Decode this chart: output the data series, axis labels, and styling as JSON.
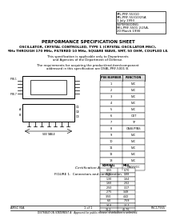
{
  "bg_color": "#ffffff",
  "title_main": "PERFORMANCE SPECIFICATION SHEET",
  "title_sub1": "OSCILLATOR, CRYSTAL CONTROLLED, TYPE 1 (CRYSTAL OSCILLATOR MSC),",
  "title_sub2": "25 MHz THROUGH 170 MHz, FILTERED 10 MHz, SQUARE WAVE, SMT, 50 OHM, COUPLED LEADS",
  "desc1": "This specification is applicable only to Departments",
  "desc2": "and Agencies of the Department of Defense.",
  "desc3": "The requirements for acquiring the product/end-item/component",
  "desc4": "addressed in this specification are DSBL-PRF-5001 B.",
  "top_box_lines": [
    "MIL-PRF-55310",
    "MIL-PRF-55310/25A",
    "1 July 1993",
    "SUPERSEDING",
    "MIL-PRF-5501 2/25A-",
    "20 March 1990"
  ],
  "pin_table_header": [
    "PIN NUMBER",
    "FUNCTION"
  ],
  "pin_table_rows": [
    [
      "1",
      "N/C"
    ],
    [
      "2",
      "N/C"
    ],
    [
      "3",
      "N/C"
    ],
    [
      "4",
      "N/C"
    ],
    [
      "5",
      "N/C"
    ],
    [
      "6",
      "OUT"
    ],
    [
      "7",
      "TP"
    ],
    [
      "8",
      "CASE/PINS"
    ],
    [
      "9",
      "N/C"
    ],
    [
      "10",
      "N/C"
    ],
    [
      "11",
      "N/C"
    ],
    [
      "12",
      "N/C"
    ],
    [
      "13",
      "N/C"
    ],
    [
      "14",
      "GND/VCC"
    ]
  ],
  "dim_table_header": [
    "NOMINAL",
    "MAX"
  ],
  "dim_table_rows": [
    [
      "0.55",
      "0.70"
    ],
    [
      "0.70",
      "0.88"
    ],
    [
      "1.30",
      "1.64"
    ],
    [
      "1.60",
      "2.02"
    ],
    [
      "2.50",
      "3.17"
    ],
    [
      "2.75",
      "3.48"
    ],
    [
      "3.50",
      "4.42"
    ],
    [
      "6.0",
      "7.59"
    ],
    [
      "14.0",
      "17.7"
    ],
    [
      "36.2",
      "45.76"
    ]
  ],
  "footnote_a": "Certification A",
  "figure_caption": "FIGURE 1.  Connectors and configuration.",
  "footer_left": "AMSC N/A",
  "footer_page": "1 of 1",
  "footer_right": "FSC17965",
  "footer_dist": "DISTRIBUTION STATEMENT A:  Approved for public release; distribution is unlimited."
}
